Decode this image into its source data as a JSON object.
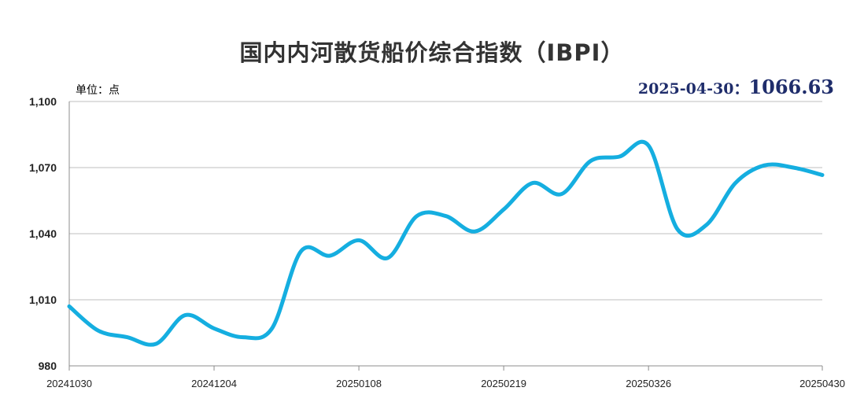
{
  "chart_data": {
    "type": "line",
    "title": "国内内河散货船价综合指数（IBPI）",
    "unit_label": "单位：点",
    "latest": {
      "date": "2025-04-30",
      "separator": "：",
      "value": "1066.63"
    },
    "x_tick_labels": [
      "20241030",
      "20241204",
      "20250108",
      "20250219",
      "20250326",
      "20250430"
    ],
    "x_range": [
      0,
      26
    ],
    "y_tick_labels": [
      "1,100",
      "1,070",
      "1,040",
      "1,010",
      "980"
    ],
    "ylim": [
      980,
      1100
    ],
    "yticks": [
      980,
      1010,
      1040,
      1070,
      1100
    ],
    "grid": true,
    "series": [
      {
        "color": "#15aee0",
        "x": [
          0,
          1,
          2,
          3,
          4,
          5,
          6,
          7,
          8,
          9,
          10,
          11,
          12,
          13,
          14,
          15,
          16,
          17,
          18,
          19,
          20,
          21,
          22,
          23,
          24,
          25,
          26
        ],
        "values": [
          1007,
          996,
          993,
          990,
          1003,
          997,
          993,
          997,
          1032,
          1030,
          1037,
          1029,
          1048,
          1048,
          1041,
          1051,
          1063,
          1058,
          1073,
          1075,
          1080,
          1042,
          1044,
          1063,
          1071,
          1070,
          1066.63
        ]
      }
    ]
  }
}
